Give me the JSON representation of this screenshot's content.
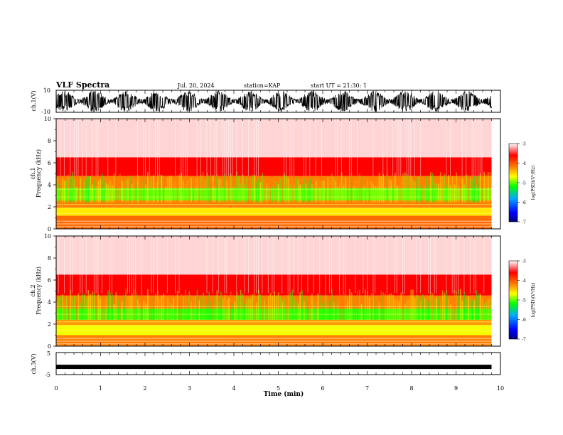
{
  "header": {
    "title": "VLF Spectra",
    "date": "Jul. 20, 2024",
    "station": "station=KAP",
    "start": "start UT =  21:30: 1"
  },
  "colors": {
    "background": "#ffffff",
    "axis": "#000000",
    "colormap": [
      "#00007f",
      "#0000ff",
      "#00aaff",
      "#00ff00",
      "#ffff00",
      "#ff8000",
      "#ff0000",
      "#ffffff"
    ]
  },
  "chart_data": [
    {
      "type": "line",
      "panel": "ch1-waveform",
      "ylabel": "ch.1(V)",
      "ylim": [
        -10,
        10
      ],
      "yticks": [
        "10",
        "-10"
      ],
      "xlim": [
        0,
        10
      ],
      "description_of_signal": "dense noisy waveform"
    },
    {
      "type": "heatmap",
      "panel": "ch1-spectrogram",
      "ylabel": "ch.1 Frequency (kHz)",
      "ylabel_parts": [
        "ch.1",
        "Frequency (kHz)"
      ],
      "ylim": [
        0,
        10
      ],
      "yticks": [
        "0",
        "2",
        "4",
        "6",
        "8",
        "10"
      ],
      "xlim": [
        0,
        9.8
      ],
      "colorbar": {
        "label": "log(PSD)(V²/Hz)",
        "range": [
          -7,
          -3
        ],
        "ticks": [
          "-3",
          "-4",
          "-5",
          "-6",
          "-7"
        ]
      },
      "bands_khz": [
        {
          "from": 0,
          "to": 1.2,
          "level": -4.1
        },
        {
          "from": 1.2,
          "to": 1.9,
          "level": -4.6
        },
        {
          "from": 1.9,
          "to": 2.6,
          "level": -4.2
        },
        {
          "from": 2.6,
          "to": 3.7,
          "level": -5.0
        },
        {
          "from": 3.7,
          "to": 4.8,
          "level": -4.2
        },
        {
          "from": 4.8,
          "to": 6.5,
          "level": -3.6
        },
        {
          "from": 6.5,
          "to": 10,
          "level": -3.1
        }
      ]
    },
    {
      "type": "heatmap",
      "panel": "ch2-spectrogram",
      "ylabel": "ch.2 Frequency (kHz)",
      "ylabel_parts": [
        "ch.2",
        "Frequency (kHz)"
      ],
      "ylim": [
        0,
        10
      ],
      "yticks": [
        "0",
        "2",
        "4",
        "6",
        "8",
        "10"
      ],
      "xlim": [
        0,
        9.8
      ],
      "colorbar": {
        "label": "log(PSD)(V²/Hz)",
        "range": [
          -7,
          -3
        ],
        "ticks": [
          "-3",
          "-4",
          "-5",
          "-6",
          "-7"
        ]
      },
      "bands_khz": [
        {
          "from": 0,
          "to": 1.0,
          "level": -4.2
        },
        {
          "from": 1.0,
          "to": 1.9,
          "level": -4.7
        },
        {
          "from": 1.9,
          "to": 2.4,
          "level": -4.3
        },
        {
          "from": 2.4,
          "to": 3.4,
          "level": -5.1
        },
        {
          "from": 3.4,
          "to": 4.6,
          "level": -4.2
        },
        {
          "from": 4.6,
          "to": 6.5,
          "level": -3.6
        },
        {
          "from": 6.5,
          "to": 10,
          "level": -3.1
        }
      ]
    },
    {
      "type": "line",
      "panel": "ch3-waveform",
      "ylabel": "ch.3(V)",
      "ylim": [
        -5,
        5
      ],
      "yticks": [
        "5",
        "-5"
      ],
      "xlim": [
        0,
        10
      ],
      "xlabel": "Time (min)",
      "xticks": [
        "0",
        "1",
        "2",
        "3",
        "4",
        "5",
        "6",
        "7",
        "8",
        "9",
        "10"
      ],
      "signal_level": -1.5
    }
  ]
}
